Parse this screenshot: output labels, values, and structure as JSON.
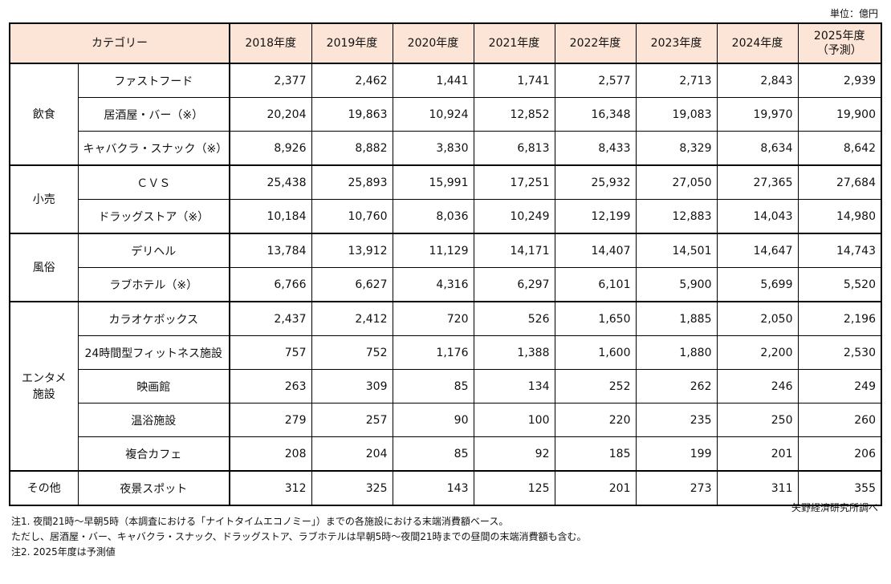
{
  "unit": "単位：億円",
  "source": "矢野経済研究所調べ",
  "header": {
    "category": "カテゴリー",
    "years": [
      "2018年度",
      "2019年度",
      "2020年度",
      "2021年度",
      "2022年度",
      "2023年度",
      "2024年度"
    ],
    "forecast_year": "2025年度",
    "forecast_label": "（予測）"
  },
  "header_bg": "#fce4d6",
  "groups": [
    {
      "name": "飲食",
      "rows": [
        {
          "label": "ファストフード",
          "values": [
            "2,377",
            "2,462",
            "1,441",
            "1,741",
            "2,577",
            "2,713",
            "2,843",
            "2,939"
          ]
        },
        {
          "label": "居酒屋・バー（※）",
          "values": [
            "20,204",
            "19,863",
            "10,924",
            "12,852",
            "16,348",
            "19,083",
            "19,970",
            "19,900"
          ]
        },
        {
          "label": "キャバクラ・スナック（※）",
          "values": [
            "8,926",
            "8,882",
            "3,830",
            "6,813",
            "8,433",
            "8,329",
            "8,634",
            "8,642"
          ]
        }
      ]
    },
    {
      "name": "小売",
      "rows": [
        {
          "label": "ＣＶＳ",
          "values": [
            "25,438",
            "25,893",
            "15,991",
            "17,251",
            "25,932",
            "27,050",
            "27,365",
            "27,684"
          ]
        },
        {
          "label": "ドラッグストア（※）",
          "values": [
            "10,184",
            "10,760",
            "8,036",
            "10,249",
            "12,199",
            "12,883",
            "14,043",
            "14,980"
          ]
        }
      ]
    },
    {
      "name": "風俗",
      "rows": [
        {
          "label": "デリヘル",
          "values": [
            "13,784",
            "13,912",
            "11,129",
            "14,171",
            "14,407",
            "14,501",
            "14,647",
            "14,743"
          ]
        },
        {
          "label": "ラブホテル（※）",
          "values": [
            "6,766",
            "6,627",
            "4,316",
            "6,297",
            "6,101",
            "5,900",
            "5,699",
            "5,520"
          ]
        }
      ]
    },
    {
      "name": "エンタメ\n施設",
      "rows": [
        {
          "label": "カラオケボックス",
          "values": [
            "2,437",
            "2,412",
            "720",
            "526",
            "1,650",
            "1,885",
            "2,050",
            "2,196"
          ]
        },
        {
          "label": "24時間型フィットネス施設",
          "values": [
            "757",
            "752",
            "1,176",
            "1,388",
            "1,600",
            "1,880",
            "2,200",
            "2,530"
          ]
        },
        {
          "label": "映画館",
          "values": [
            "263",
            "309",
            "85",
            "134",
            "252",
            "262",
            "246",
            "249"
          ]
        },
        {
          "label": "温浴施設",
          "values": [
            "279",
            "257",
            "90",
            "100",
            "220",
            "235",
            "250",
            "260"
          ]
        },
        {
          "label": "複合カフェ",
          "values": [
            "208",
            "204",
            "85",
            "92",
            "185",
            "199",
            "201",
            "206"
          ]
        }
      ]
    },
    {
      "name": "その他",
      "rows": [
        {
          "label": "夜景スポット",
          "values": [
            "312",
            "325",
            "143",
            "125",
            "201",
            "273",
            "311",
            "355"
          ]
        }
      ]
    }
  ],
  "notes": [
    "注1.  夜間21時～早朝5時（本調査における「ナイトタイムエコノミー」）までの各施設における末端消費額ベース。",
    "ただし、居酒屋・バー、キャバクラ・スナック、ドラッグストア、ラブホテルは早朝5時～夜間21時までの昼間の末端消費額も含む。",
    "注2.  2025年度は予測値"
  ]
}
